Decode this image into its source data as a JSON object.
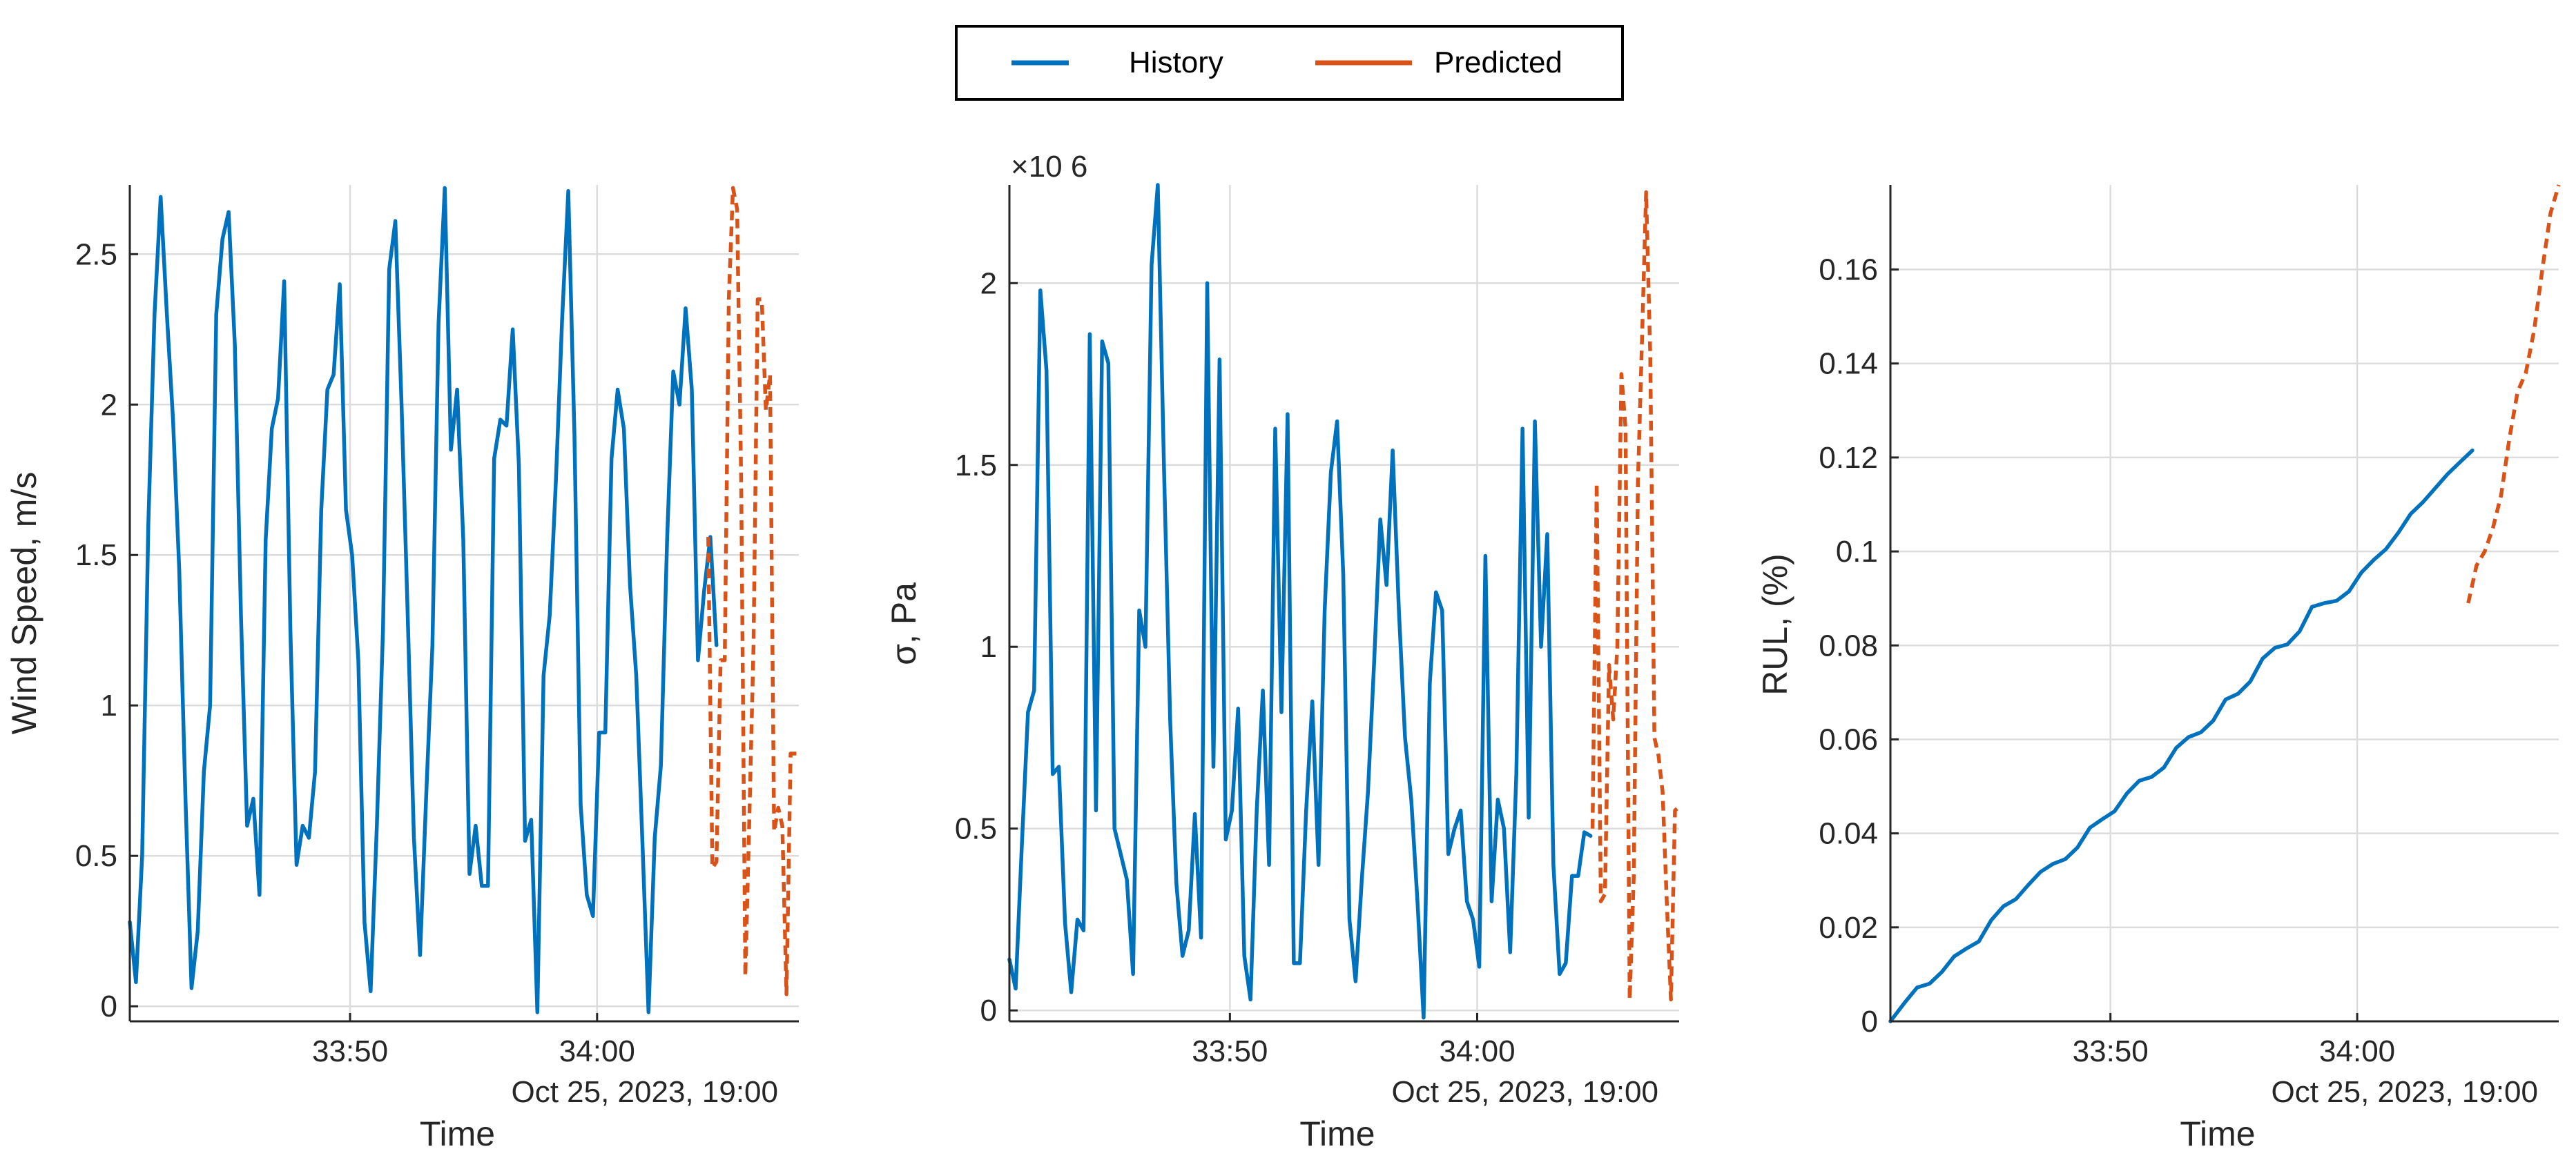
{
  "legend": {
    "entries": [
      {
        "label": "History",
        "color": "#0072BD",
        "style": "solid"
      },
      {
        "label": "Predicted",
        "color": "#D95319",
        "style": "dashed"
      }
    ],
    "placement": "top-center"
  },
  "chart_data": [
    {
      "type": "line",
      "xlabel": "Time",
      "ylabel": "Wind Speed, m/s",
      "x_ticks": [
        "33:50",
        "34:00"
      ],
      "x_secondary_label": "Oct 25, 2023, 19:00",
      "x_unit": "seconds after 19:33:00",
      "xlim": [
        6.3,
        38.8
      ],
      "ylim": [
        -0.05,
        2.73
      ],
      "y_ticks": [
        "0",
        "0.5",
        "1",
        "1.5",
        "2",
        "2.5"
      ],
      "y_tick_values": [
        0,
        0.5,
        1,
        1.5,
        2,
        2.5
      ],
      "grid": true,
      "series": [
        {
          "name": "History",
          "style": "solid",
          "x": [
            6.3,
            6.6,
            6.9,
            7.2,
            7.5,
            7.8,
            8.1,
            8.4,
            8.7,
            9.0,
            9.3,
            9.6,
            9.9,
            10.2,
            10.5,
            10.8,
            11.1,
            11.4,
            11.7,
            12.0,
            12.3,
            12.6,
            12.9,
            13.2,
            13.5,
            13.8,
            14.1,
            14.4,
            14.7,
            15.0,
            15.3,
            15.6,
            15.9,
            16.2,
            16.5,
            16.8,
            17.1,
            17.4,
            17.7,
            18.0,
            18.3,
            18.6,
            18.9,
            19.2,
            19.5,
            19.8,
            20.1,
            20.4,
            20.7,
            21.0,
            21.3,
            21.6,
            21.9,
            22.2,
            22.5,
            22.8,
            23.1,
            23.4,
            23.7,
            24.0,
            24.3,
            24.6,
            24.9,
            25.2,
            25.5,
            25.8,
            26.1,
            26.4,
            26.7,
            27.0,
            27.3,
            27.6,
            27.9,
            28.2,
            28.5,
            28.8,
            29.1,
            29.4,
            29.7,
            30.0,
            30.3,
            30.6,
            30.9,
            31.2,
            31.5,
            31.8,
            32.1,
            32.4,
            32.7,
            33.0,
            33.3,
            33.6,
            33.9,
            34.2,
            34.5,
            34.8
          ],
          "values": [
            0.28,
            0.08,
            0.5,
            1.6,
            2.3,
            2.69,
            2.3,
            1.95,
            1.45,
            0.7,
            0.06,
            0.25,
            0.78,
            1.0,
            2.3,
            2.55,
            2.64,
            2.2,
            1.3,
            0.6,
            0.69,
            0.37,
            1.55,
            1.92,
            2.02,
            2.41,
            1.25,
            0.47,
            0.6,
            0.56,
            0.78,
            1.65,
            2.05,
            2.1,
            2.4,
            1.65,
            1.5,
            1.15,
            0.28,
            0.05,
            0.6,
            1.25,
            2.45,
            2.61,
            2.0,
            1.3,
            0.56,
            0.17,
            0.7,
            1.2,
            2.27,
            2.72,
            1.85,
            2.05,
            1.55,
            0.44,
            0.6,
            0.4,
            0.4,
            1.82,
            1.95,
            1.93,
            2.25,
            1.8,
            0.55,
            0.62,
            -0.02,
            1.1,
            1.3,
            1.75,
            2.28,
            2.71,
            1.9,
            0.67,
            0.37,
            0.3,
            0.91,
            0.91,
            1.82,
            2.05,
            1.92,
            1.4,
            1.1,
            0.55,
            -0.02,
            0.56,
            0.8,
            1.55,
            2.11,
            2.0,
            2.32,
            2.05,
            1.15,
            1.38,
            1.56,
            1.2
          ]
        },
        {
          "name": "Predicted",
          "style": "dashed",
          "x": [
            34.4,
            34.6,
            34.8,
            35.0,
            35.2,
            35.4,
            35.6,
            35.8,
            36.0,
            36.2,
            36.4,
            36.6,
            36.8,
            37.0,
            37.2,
            37.4,
            37.6,
            37.8,
            38.0,
            38.2,
            38.4,
            38.6,
            38.8
          ],
          "values": [
            1.56,
            0.46,
            0.48,
            1.15,
            1.15,
            2.35,
            2.72,
            2.65,
            1.75,
            0.1,
            0.63,
            1.2,
            2.35,
            2.35,
            1.98,
            2.1,
            0.58,
            0.66,
            0.6,
            0.04,
            0.84,
            0.84,
            0.84
          ]
        }
      ]
    },
    {
      "type": "line",
      "xlabel": "Time",
      "ylabel": "σ, Pa",
      "y_multiplier": "×10 6",
      "x_ticks": [
        "33:50",
        "34:00"
      ],
      "x_secondary_label": "Oct 25, 2023, 19:00",
      "x_unit": "seconds after 19:33:00",
      "xlim": [
        6.3,
        38.8
      ],
      "ylim": [
        -0.03,
        2.27
      ],
      "y_ticks": [
        "0",
        "0.5",
        "1",
        "1.5",
        "2"
      ],
      "y_tick_values": [
        0,
        0.5,
        1,
        1.5,
        2
      ],
      "grid": true,
      "series": [
        {
          "name": "History",
          "style": "solid",
          "x": [
            6.3,
            6.6,
            6.9,
            7.2,
            7.5,
            7.8,
            8.1,
            8.4,
            8.7,
            9.0,
            9.3,
            9.6,
            9.9,
            10.2,
            10.5,
            10.8,
            11.1,
            11.4,
            11.7,
            12.0,
            12.3,
            12.6,
            12.9,
            13.2,
            13.5,
            13.8,
            14.1,
            14.4,
            14.7,
            15.0,
            15.3,
            15.6,
            15.9,
            16.2,
            16.5,
            16.8,
            17.1,
            17.4,
            17.7,
            18.0,
            18.3,
            18.6,
            18.9,
            19.2,
            19.5,
            19.8,
            20.1,
            20.4,
            20.7,
            21.0,
            21.3,
            21.6,
            21.9,
            22.2,
            22.5,
            22.8,
            23.1,
            23.4,
            23.7,
            24.0,
            24.3,
            24.6,
            24.9,
            25.2,
            25.5,
            25.8,
            26.1,
            26.4,
            26.7,
            27.0,
            27.3,
            27.6,
            27.9,
            28.2,
            28.5,
            28.8,
            29.1,
            29.4,
            29.7,
            30.0,
            30.3,
            30.6,
            30.9,
            31.2,
            31.5,
            31.8,
            32.1,
            32.4,
            32.7,
            33.0,
            33.3,
            33.6,
            33.9,
            34.2,
            34.5
          ],
          "values": [
            0.14,
            0.06,
            0.45,
            0.82,
            0.88,
            1.98,
            1.76,
            0.65,
            0.67,
            0.24,
            0.05,
            0.25,
            0.22,
            1.86,
            0.55,
            1.84,
            1.78,
            0.5,
            0.43,
            0.36,
            0.1,
            1.1,
            1.0,
            2.05,
            2.27,
            1.5,
            0.8,
            0.35,
            0.15,
            0.22,
            0.54,
            0.2,
            2.0,
            0.67,
            1.79,
            0.47,
            0.55,
            0.83,
            0.15,
            0.03,
            0.55,
            0.88,
            0.4,
            1.6,
            0.82,
            1.64,
            0.13,
            0.13,
            0.55,
            0.85,
            0.4,
            1.1,
            1.48,
            1.62,
            1.2,
            0.25,
            0.08,
            0.36,
            0.6,
            0.96,
            1.35,
            1.17,
            1.54,
            1.1,
            0.75,
            0.58,
            0.3,
            -0.02,
            0.9,
            1.15,
            1.1,
            0.43,
            0.5,
            0.55,
            0.3,
            0.25,
            0.12,
            1.25,
            0.3,
            0.58,
            0.5,
            0.16,
            0.65,
            1.6,
            0.53,
            1.62,
            1.0,
            1.31,
            0.4,
            0.1,
            0.13,
            0.37,
            0.37,
            0.49,
            0.48
          ]
        },
        {
          "name": "Predicted",
          "style": "dashed",
          "x": [
            34.6,
            34.8,
            35.0,
            35.2,
            35.4,
            35.6,
            35.8,
            36.0,
            36.2,
            36.4,
            36.6,
            36.8,
            37.0,
            37.2,
            37.4,
            37.6,
            37.8,
            38.0,
            38.2,
            38.4,
            38.6,
            38.8
          ],
          "values": [
            0.5,
            1.45,
            0.3,
            0.32,
            0.95,
            0.8,
            1.0,
            1.75,
            1.6,
            0.03,
            0.37,
            1.45,
            1.85,
            2.25,
            1.8,
            0.75,
            0.7,
            0.6,
            0.3,
            0.03,
            0.55,
            0.56
          ]
        }
      ]
    },
    {
      "type": "line",
      "xlabel": "Time",
      "ylabel": "RUL, (%)",
      "x_ticks": [
        "33:50",
        "34:00"
      ],
      "x_secondary_label": "Oct 25, 2023, 19:00",
      "x_unit": "seconds after 19:33:00",
      "xlim": [
        6.3,
        38.8
      ],
      "ylim": [
        0,
        0.178
      ],
      "y_ticks": [
        "0",
        "0.02",
        "0.04",
        "0.06",
        "0.08",
        "0.1",
        "0.12",
        "0.14",
        "0.16"
      ],
      "y_tick_values": [
        0,
        0.02,
        0.04,
        0.06,
        0.08,
        0.1,
        0.12,
        0.14,
        0.16
      ],
      "grid": true,
      "series": [
        {
          "name": "History",
          "style": "solid",
          "x": [
            6.3,
            7.0,
            7.6,
            8.2,
            8.8,
            9.4,
            10.0,
            10.6,
            11.2,
            11.8,
            12.4,
            13.0,
            13.6,
            14.2,
            14.8,
            15.4,
            16.0,
            16.6,
            17.2,
            17.8,
            18.4,
            19.0,
            19.6,
            20.2,
            20.8,
            21.4,
            22.0,
            22.6,
            23.2,
            23.8,
            24.4,
            25.0,
            25.6,
            26.2,
            26.8,
            27.4,
            28.0,
            28.6,
            29.2,
            29.8,
            30.4,
            31.0,
            31.6,
            32.2,
            32.8,
            33.4,
            34.0,
            34.6
          ],
          "values": [
            0.0,
            0.004,
            0.0072,
            0.008,
            0.0105,
            0.0138,
            0.0155,
            0.017,
            0.0215,
            0.0245,
            0.026,
            0.029,
            0.0318,
            0.0335,
            0.0345,
            0.037,
            0.0412,
            0.043,
            0.0447,
            0.0485,
            0.0512,
            0.052,
            0.054,
            0.0582,
            0.0605,
            0.0615,
            0.064,
            0.0685,
            0.0697,
            0.0723,
            0.0772,
            0.0795,
            0.0802,
            0.083,
            0.0882,
            0.089,
            0.0895,
            0.0915,
            0.0955,
            0.0982,
            0.1005,
            0.104,
            0.108,
            0.1105,
            0.1135,
            0.1165,
            0.119,
            0.1215
          ]
        },
        {
          "name": "Predicted",
          "style": "dashed",
          "x": [
            34.4,
            34.8,
            35.2,
            35.6,
            36.0,
            36.4,
            36.8,
            37.2,
            37.6,
            38.0,
            38.4,
            38.8
          ],
          "values": [
            0.089,
            0.097,
            0.1,
            0.105,
            0.112,
            0.124,
            0.134,
            0.138,
            0.147,
            0.16,
            0.172,
            0.178
          ]
        }
      ]
    }
  ]
}
